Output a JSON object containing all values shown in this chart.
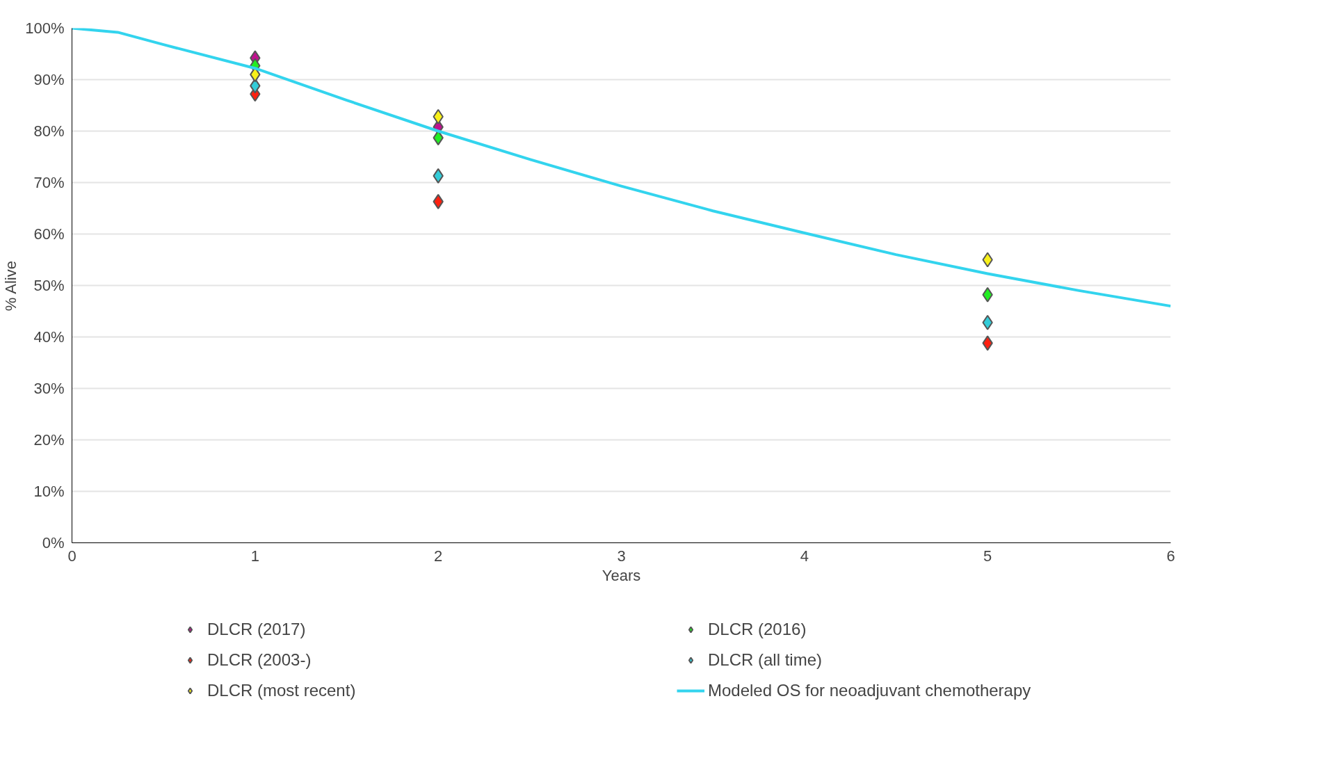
{
  "chart_data": {
    "type": "scatter",
    "xlabel": "Years",
    "ylabel": "% Alive",
    "xlim": [
      0,
      6
    ],
    "xticks": [
      0,
      1,
      2,
      3,
      4,
      5,
      6
    ],
    "ylim": [
      0,
      100
    ],
    "yticks": [
      {
        "value": 0,
        "label": "0%"
      },
      {
        "value": 10,
        "label": "10%"
      },
      {
        "value": 20,
        "label": "20%"
      },
      {
        "value": 30,
        "label": "30%"
      },
      {
        "value": 40,
        "label": "40%"
      },
      {
        "value": 50,
        "label": "50%"
      },
      {
        "value": 60,
        "label": "60%"
      },
      {
        "value": 70,
        "label": "70%"
      },
      {
        "value": 80,
        "label": "80%"
      },
      {
        "value": 90,
        "label": "90%"
      },
      {
        "value": 100,
        "label": "100%"
      }
    ],
    "grid": "y",
    "legend": "bottom",
    "marker": "diamond",
    "series": [
      {
        "name": "DLCR (2017)",
        "color": "#c0118f",
        "x": [
          1,
          2
        ],
        "values": [
          94.2,
          80.8
        ]
      },
      {
        "name": "DLCR (2016)",
        "color": "#22ee22",
        "x": [
          1,
          2,
          5
        ],
        "values": [
          92.7,
          78.7,
          48.2
        ]
      },
      {
        "name": "DLCR (2003-)",
        "color": "#ff2010",
        "x": [
          1,
          2,
          5
        ],
        "values": [
          87.2,
          66.3,
          38.8
        ]
      },
      {
        "name": "DLCR (all time)",
        "color": "#33ccd8",
        "x": [
          1,
          2,
          5
        ],
        "values": [
          88.8,
          71.3,
          42.8
        ]
      },
      {
        "name": "DLCR (most recent)",
        "color": "#f8f01a",
        "x": [
          1,
          2,
          5
        ],
        "values": [
          91,
          82.8,
          55
        ]
      },
      {
        "name": "Modeled OS for neoadjuvant chemotherapy",
        "type": "line",
        "marker": "none",
        "color": "#33d4ee",
        "x": [
          0,
          0.25,
          0.5,
          1,
          1.5,
          2,
          2.5,
          3,
          3.5,
          4,
          4.5,
          5,
          5.5,
          6
        ],
        "values": [
          100,
          99.2,
          96.8,
          92.2,
          86,
          80,
          74.5,
          69.3,
          64.5,
          60.2,
          56,
          52.3,
          49,
          46
        ]
      }
    ]
  }
}
